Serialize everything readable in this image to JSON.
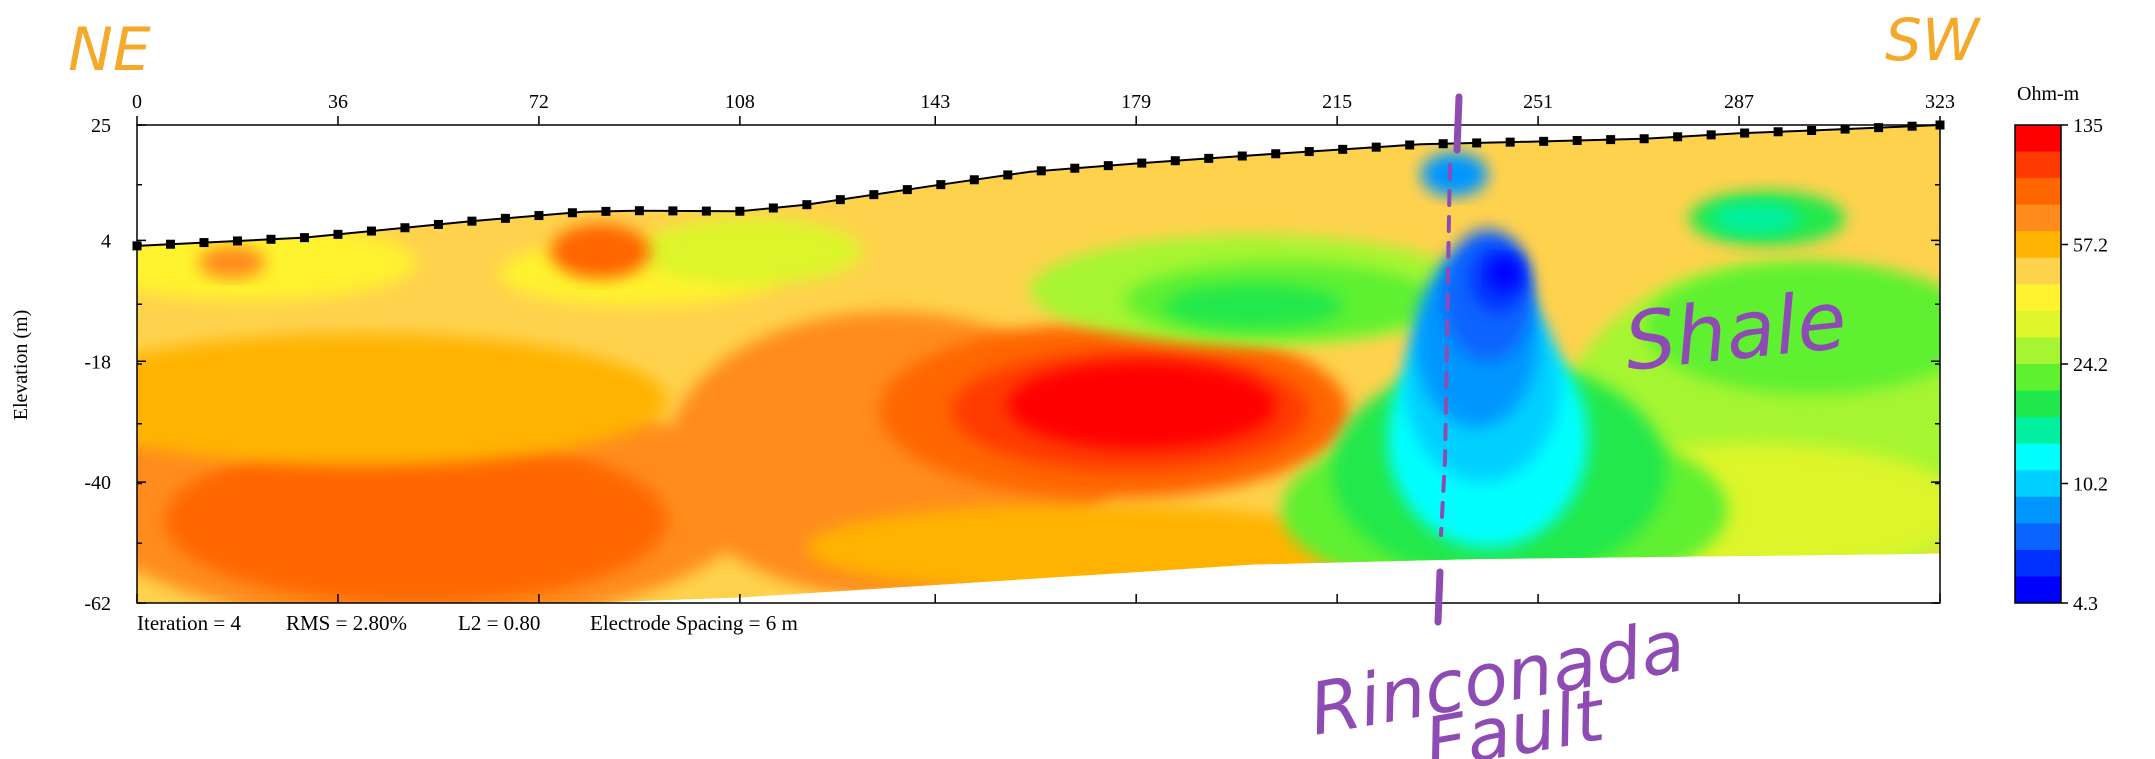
{
  "annotations": {
    "ne": "NE",
    "sw": "SW",
    "shale": "Shale",
    "fault_line1": "Rinconada",
    "fault_line2": "Fault",
    "handwriting_orange": "#F4A92A",
    "handwriting_purple": "#8E4BB4"
  },
  "footer": {
    "iteration": "Iteration = 4",
    "rms": "RMS = 2.80%",
    "l2": "L2 = 0.80",
    "spacing": "Electrode Spacing = 6 m"
  },
  "chart_data": {
    "type": "heatmap",
    "title": "",
    "xlabel": "",
    "ylabel": "Elevation (m)",
    "x_ticks": [
      "0",
      "36",
      "72",
      "108",
      "143",
      "179",
      "215",
      "251",
      "287",
      "323"
    ],
    "y_ticks": [
      "25",
      "4",
      "-18",
      "-40",
      "-62"
    ],
    "x_tick_values": [
      0,
      36,
      72,
      108,
      143,
      179,
      215,
      251,
      287,
      323
    ],
    "y_tick_values": [
      25,
      4,
      -18,
      -40,
      -62
    ],
    "xlim": [
      0,
      323
    ],
    "ylim": [
      -62,
      25
    ],
    "colorbar": {
      "unit": "Ohm-m",
      "labels": [
        "135",
        "57.2",
        "24.2",
        "10.2",
        "4.3"
      ],
      "colors": [
        "#FF0000",
        "#FF3A00",
        "#FF6600",
        "#FF8C1A",
        "#FFB300",
        "#FFD24D",
        "#FFF22E",
        "#DDF52A",
        "#A6F533",
        "#5FF030",
        "#20E84C",
        "#00F0A0",
        "#00FFFF",
        "#00D0FF",
        "#0096FF",
        "#0A64FF",
        "#0032FF",
        "#0000FF"
      ]
    },
    "surface_profile": {
      "x": [
        0,
        30,
        60,
        80,
        90,
        108,
        120,
        143,
        160,
        179,
        200,
        215,
        230,
        251,
        270,
        287,
        300,
        323
      ],
      "elevation": [
        3,
        4.5,
        7.5,
        9.2,
        9.4,
        9.3,
        10.5,
        14,
        16.5,
        18,
        19.5,
        20.5,
        21.5,
        22,
        22.5,
        23.5,
        24,
        25
      ]
    },
    "section_bottom": {
      "x": [
        0,
        80,
        108,
        200,
        240,
        323
      ],
      "elevation": [
        -62,
        -62,
        -61,
        -55,
        -54,
        -53
      ]
    },
    "rincon_fault_x": 234
  }
}
